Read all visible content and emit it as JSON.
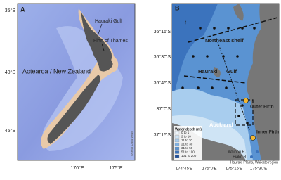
{
  "panel_a": {
    "label": "A",
    "lat_labels": [
      "35°S",
      "40°S",
      "45°S"
    ],
    "lon_labels": [
      "170°E",
      "175°E"
    ],
    "annotations": [
      "Hauraki Gulf",
      "Firth of Thames",
      "Aotearoa / New Zealand"
    ],
    "credit": "Ocean Data View"
  },
  "panel_b": {
    "label": "B",
    "lat_labels": [
      "36°15'S",
      "36°30'S",
      "36°45'S",
      "37°0'S",
      "37°15'S"
    ],
    "lon_labels": [
      "174°45'E",
      "175°0'E",
      "175°15'E",
      "175°30'E"
    ],
    "regions": [
      "Northeast shelf",
      "Hauraki",
      "Gulf",
      "Outer Firth",
      "Inner Firth",
      "Auckland",
      "Waihou R.",
      "Piako R.",
      "Hauraki Plains, Waikato region"
    ],
    "legend": {
      "title": "Water depth (m)",
      "items": [
        {
          "label": "0 to 1",
          "color": "#eef6fc"
        },
        {
          "label": "2 to 10",
          "color": "#cfe4f5"
        },
        {
          "label": "11 to 20",
          "color": "#a8cdee"
        },
        {
          "label": "21 to 30",
          "color": "#7fb1e2"
        },
        {
          "label": "31 to 50",
          "color": "#5a93d2"
        },
        {
          "label": "51 to 100",
          "color": "#3b73bd"
        },
        {
          "label": "101 to 200",
          "color": "#1f4f9a"
        }
      ]
    }
  }
}
